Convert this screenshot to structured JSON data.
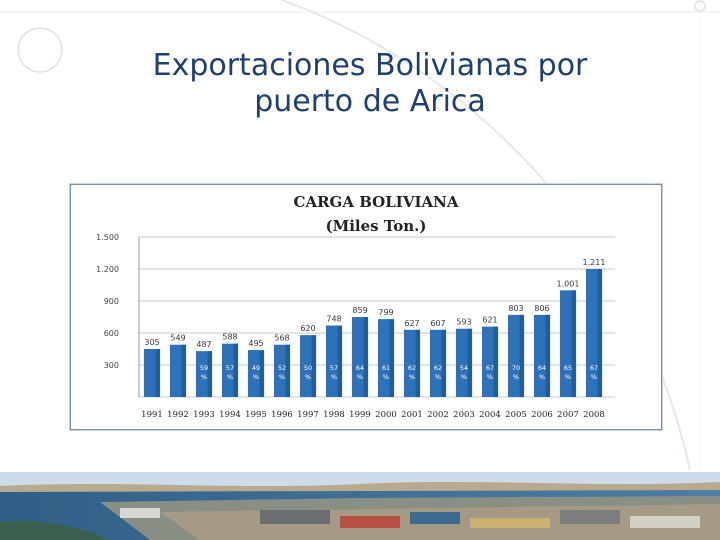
{
  "slide": {
    "title_line1": "Exportaciones Bolivianas  por",
    "title_line2": "puerto de Arica"
  },
  "colors": {
    "title": "#1f3f6e",
    "bar": "#2d72b8",
    "bar_dark": "#1c4f88",
    "label": "#3a3a3a"
  },
  "chart_data": {
    "type": "bar",
    "title": "CARGA BOLIVIANA",
    "subtitle": "(Miles Ton.)",
    "categories": [
      "1991",
      "1992",
      "1993",
      "1994",
      "1995",
      "1996",
      "1997",
      "1998",
      "1999",
      "2000",
      "2001",
      "2002",
      "2003",
      "2004",
      "2005",
      "2006",
      "2007",
      "2008"
    ],
    "values": [
      305,
      549,
      487,
      588,
      495,
      568,
      620,
      748,
      859,
      799,
      627,
      607,
      593,
      621,
      803,
      806,
      1001,
      1211
    ],
    "value_labels": [
      "305",
      "549",
      "487",
      "588",
      "495",
      "568",
      "620",
      "748",
      "859",
      "799",
      "627",
      "607",
      "593",
      "621",
      "803",
      "806",
      "1.001",
      "1.211"
    ],
    "bar_values": [
      450,
      490,
      430,
      500,
      440,
      490,
      580,
      670,
      750,
      730,
      630,
      630,
      640,
      660,
      770,
      770,
      1000,
      1200
    ],
    "percent_labels": [
      "",
      "",
      "59 %",
      "57 %",
      "49 %",
      "52 %",
      "50 %",
      "57 %",
      "64 %",
      "61 %",
      "62 %",
      "62 %",
      "54 %",
      "67 %",
      "70 %",
      "64 %",
      "65 %",
      "67 %"
    ],
    "y_ticks": [
      "1.500",
      "1.200",
      "900",
      "600",
      "300",
      ""
    ],
    "y_tick_values": [
      1500,
      1200,
      900,
      600,
      300,
      0
    ],
    "ylim": [
      0,
      1500
    ],
    "xlabel": "",
    "ylabel": "",
    "grid": true,
    "legend": "none"
  }
}
